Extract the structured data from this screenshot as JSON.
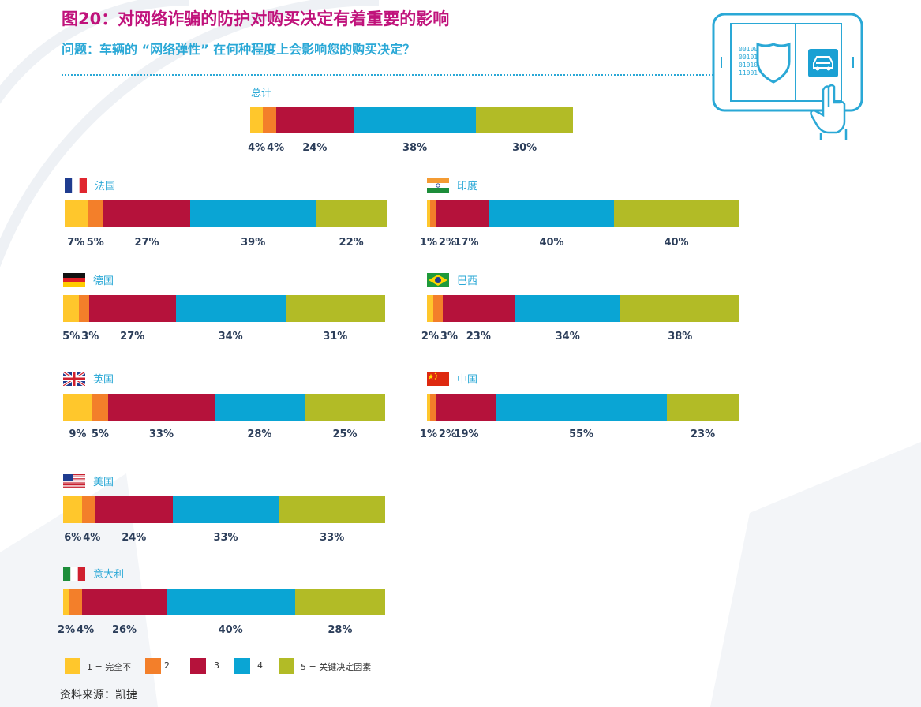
{
  "title": "图20：对网络诈骗的防护对购买决定有着重要的影响",
  "subtitle": "问题：车辆的 “网络弹性” 在何种程度上会影响您的购买决定？",
  "source": "资料来源：凯捷",
  "icon_binary": [
    "00100",
    "00101",
    "01010",
    "11001"
  ],
  "colors": [
    "#ffc72c",
    "#f37f2a",
    "#b5123b",
    "#0aa5d4",
    "#b2bb26"
  ],
  "chart_data": {
    "type": "bar",
    "orientation": "horizontal-stacked-100",
    "categories": [
      "1 = 完全不",
      "2",
      "3",
      "4",
      "5 = 关键决定因素"
    ],
    "panels": [
      {
        "key": "total",
        "name": "总计",
        "flag": null,
        "values": [
          4,
          4,
          24,
          38,
          30
        ],
        "labels": [
          "4%",
          "4%",
          "24%",
          "38%",
          "30%"
        ]
      },
      {
        "key": "fr",
        "name": "法国",
        "flag": "france-flag-icon",
        "values": [
          7,
          5,
          27,
          39,
          22
        ],
        "labels": [
          "7%",
          "5%",
          "27%",
          "39%",
          "22%"
        ]
      },
      {
        "key": "in",
        "name": "印度",
        "flag": "india-flag-icon",
        "values": [
          1,
          2,
          17,
          40,
          40
        ],
        "labels": [
          "1%",
          "2%",
          "17%",
          "40%",
          "40%"
        ]
      },
      {
        "key": "de",
        "name": "德国",
        "flag": "germany-flag-icon",
        "values": [
          5,
          3,
          27,
          34,
          31
        ],
        "labels": [
          "5%",
          "3%",
          "27%",
          "34%",
          "31%"
        ]
      },
      {
        "key": "br",
        "name": "巴西",
        "flag": "brazil-flag-icon",
        "values": [
          2,
          3,
          23,
          34,
          38
        ],
        "labels": [
          "2%",
          "3%",
          "23%",
          "34%",
          "38%"
        ]
      },
      {
        "key": "uk",
        "name": "英国",
        "flag": "uk-flag-icon",
        "values": [
          9,
          5,
          33,
          28,
          25
        ],
        "labels": [
          "9%",
          "5%",
          "33%",
          "28%",
          "25%"
        ]
      },
      {
        "key": "cn",
        "name": "中国",
        "flag": "china-flag-icon",
        "values": [
          1,
          2,
          19,
          55,
          23
        ],
        "labels": [
          "1%",
          "2%",
          "19%",
          "55%",
          "23%"
        ]
      },
      {
        "key": "us",
        "name": "美国",
        "flag": "usa-flag-icon",
        "values": [
          6,
          4,
          24,
          33,
          33
        ],
        "labels": [
          "6%",
          "4%",
          "24%",
          "33%",
          "33%"
        ]
      },
      {
        "key": "it",
        "name": "意大利",
        "flag": "italy-flag-icon",
        "values": [
          2,
          4,
          26,
          40,
          28
        ],
        "labels": [
          "2%",
          "4%",
          "26%",
          "40%",
          "28%"
        ]
      }
    ],
    "legend": [
      "1 = 完全不",
      "2",
      "3",
      "4",
      "5 = 关键决定因素"
    ],
    "legend_position": "bottom"
  }
}
